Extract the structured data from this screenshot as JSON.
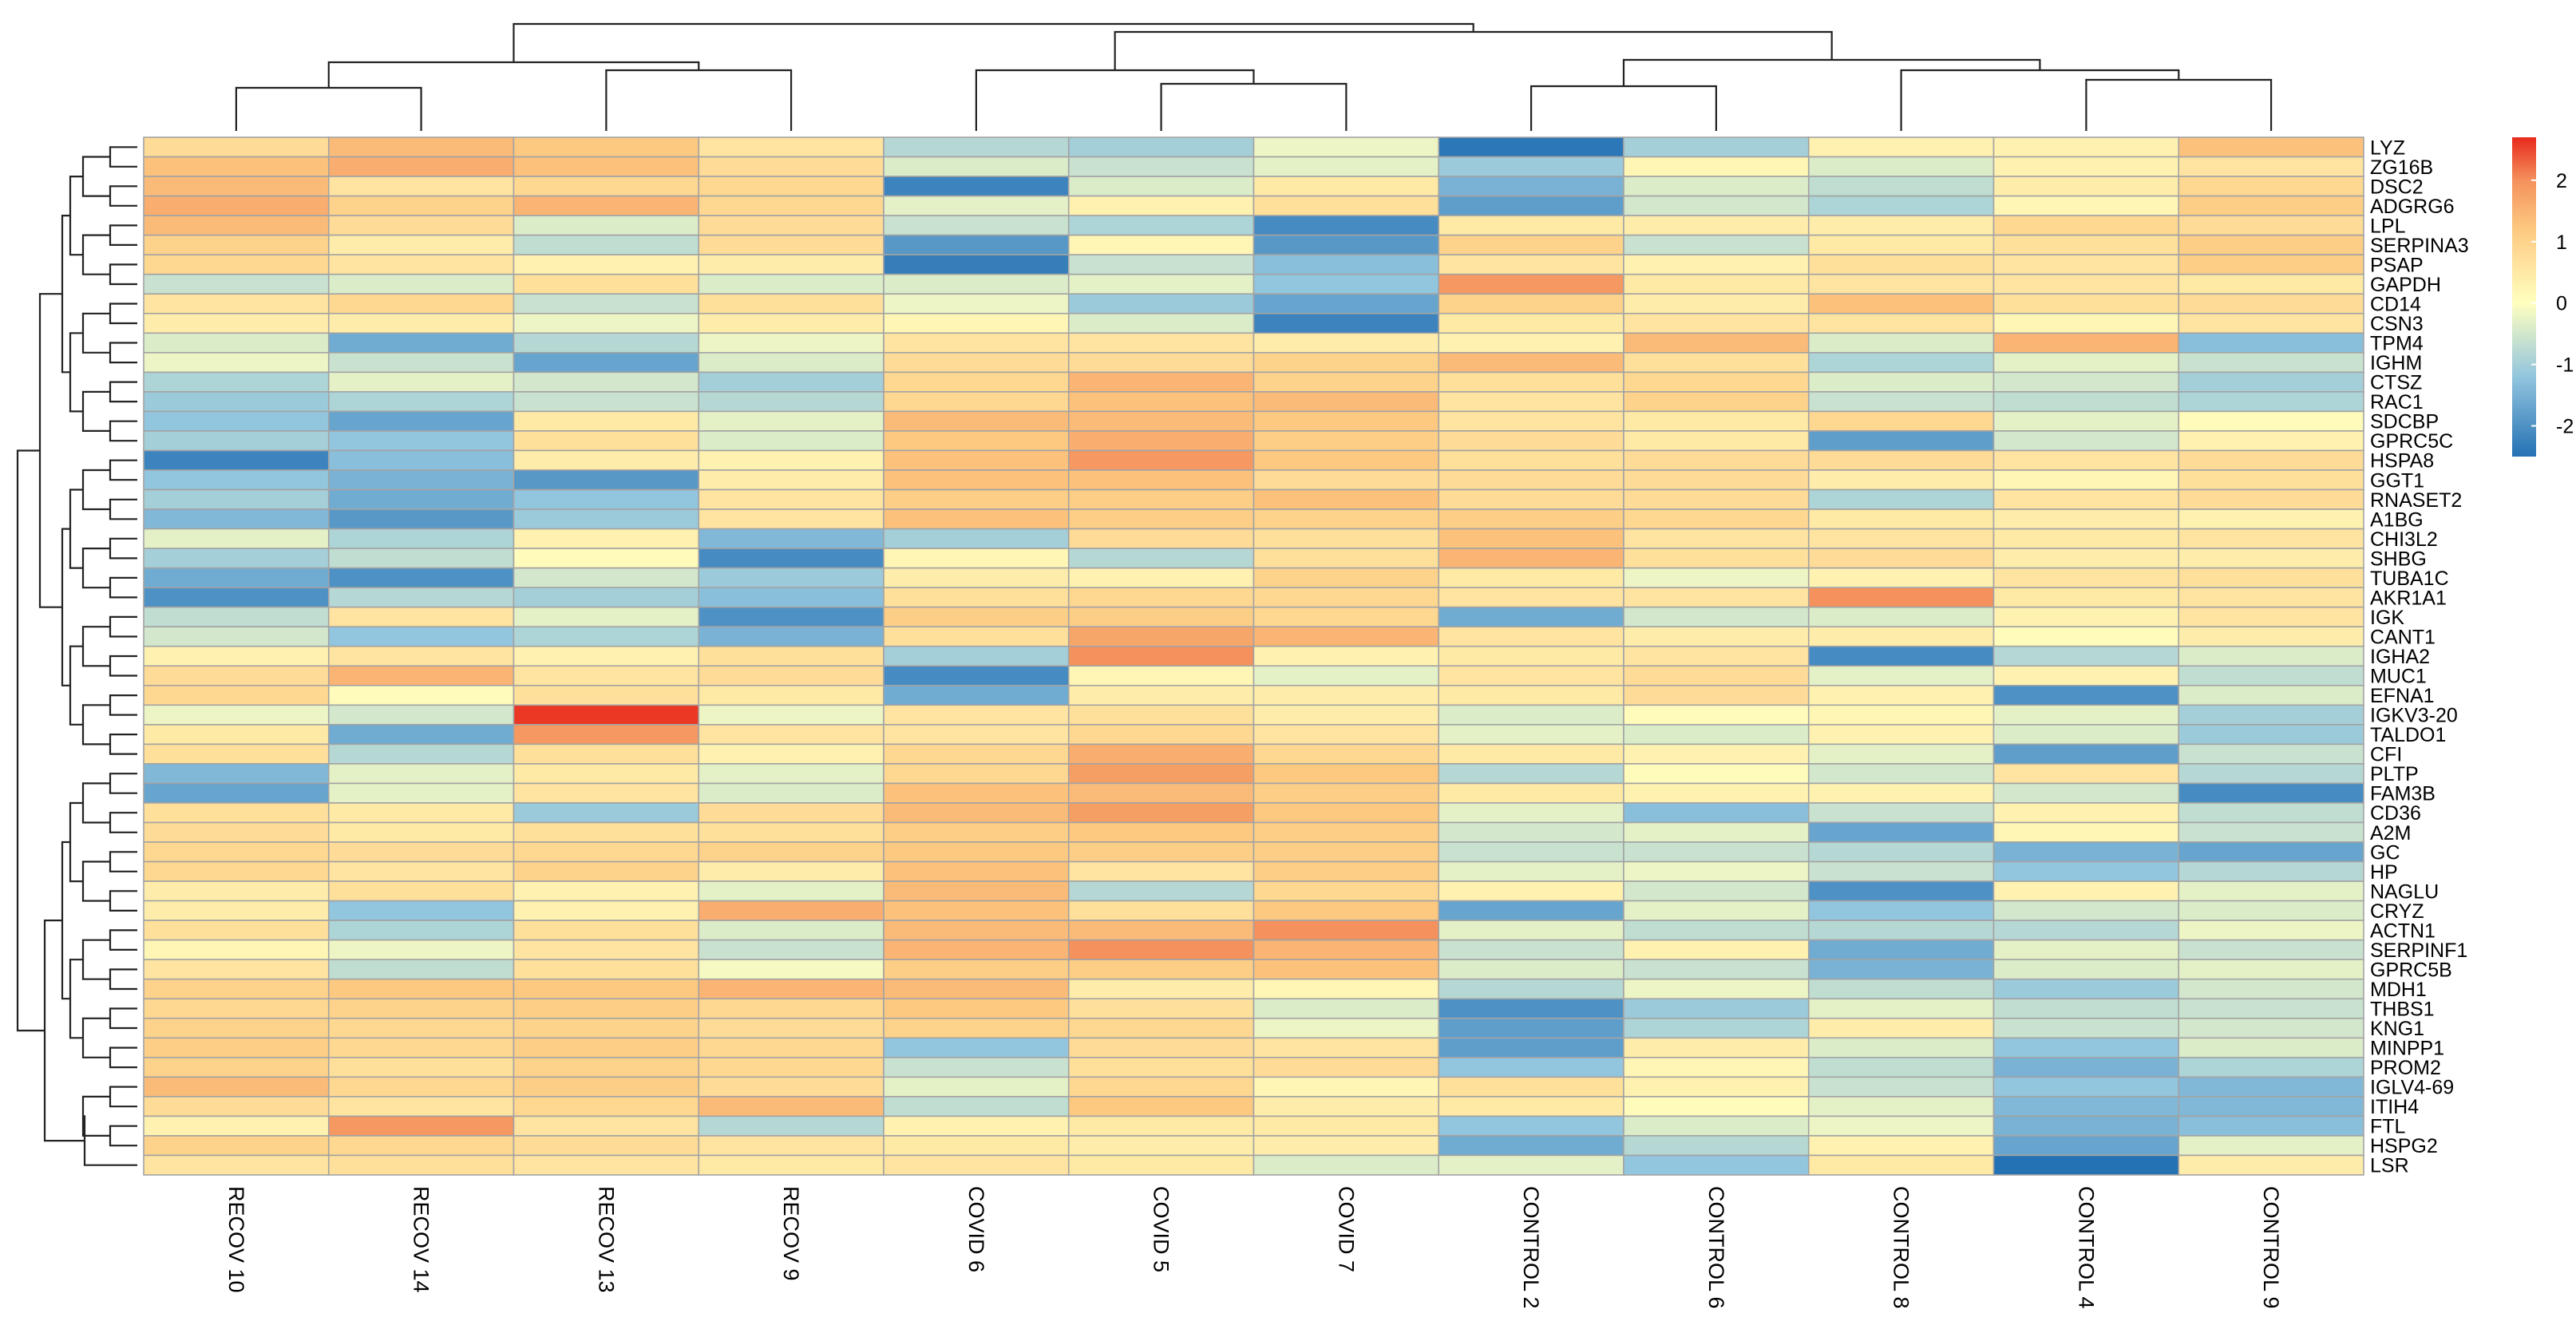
{
  "chart_data": {
    "type": "heatmap",
    "title": "",
    "color_scale": {
      "min": -2.5,
      "max": 2.7,
      "ticks": [
        -2,
        -1,
        0,
        1,
        2
      ],
      "stops": [
        {
          "value": -2.5,
          "color": "#2471B4"
        },
        {
          "value": -1.2,
          "color": "#92C5DE"
        },
        {
          "value": 0,
          "color": "#FFFFBF"
        },
        {
          "value": 1.2,
          "color": "#FDC981"
        },
        {
          "value": 2.0,
          "color": "#F4915C"
        },
        {
          "value": 2.7,
          "color": "#E8291C"
        }
      ]
    },
    "columns": [
      "RECOV 10",
      "RECOV 14",
      "RECOV 13",
      "RECOV 9",
      "COVID 6",
      "COVID 5",
      "COVID 7",
      "CONTROL 2",
      "CONTROL 6",
      "CONTROL 8",
      "CONTROL 4",
      "CONTROL 9"
    ],
    "rows": [
      "LYZ",
      "ZG16B",
      "DSC2",
      "ADGRG6",
      "LPL",
      "SERPINA3",
      "PSAP",
      "GAPDH",
      "CD14",
      "CSN3",
      "TPM4",
      "IGHM",
      "CTSZ",
      "RAC1",
      "SDCBP",
      "GPRC5C",
      "HSPA8",
      "GGT1",
      "RNASET2",
      "A1BG",
      "CHI3L2",
      "SHBG",
      "TUBA1C",
      "AKR1A1",
      "IGK",
      "CANT1",
      "IGHA2",
      "MUC1",
      "EFNA1",
      "IGKV3-20",
      "TALDO1",
      "CFI",
      "PLTP",
      "FAM3B",
      "CD36",
      "A2M",
      "GC",
      "HP",
      "NAGLU",
      "CRYZ",
      "ACTN1",
      "SERPINF1",
      "GPRC5B",
      "MDH1",
      "THBS1",
      "KNG1",
      "MINPP1",
      "PROM2",
      "IGLV4-69",
      "ITIH4",
      "FTL",
      "HSPG2",
      "LSR"
    ],
    "values": [
      [
        0.8,
        1.4,
        1.2,
        0.6,
        -0.8,
        -1.0,
        -0.2,
        -2.4,
        -1.0,
        0.3,
        0.3,
        1.3
      ],
      [
        1.3,
        1.6,
        1.3,
        0.8,
        -0.4,
        -0.6,
        -0.3,
        -1.1,
        0.2,
        -0.4,
        0.3,
        0.6
      ],
      [
        1.4,
        0.6,
        0.9,
        0.9,
        -2.2,
        -0.4,
        0.5,
        -1.5,
        -0.4,
        -0.7,
        0.4,
        0.9
      ],
      [
        1.6,
        1.0,
        1.5,
        0.9,
        -0.3,
        0.3,
        0.7,
        -1.8,
        -0.5,
        -0.9,
        0.2,
        1.1
      ],
      [
        1.4,
        0.8,
        -0.4,
        0.8,
        -0.6,
        -0.9,
        -2.1,
        0.5,
        0.4,
        0.4,
        0.9,
        0.8
      ],
      [
        1.0,
        0.4,
        -0.7,
        0.8,
        -1.9,
        0.2,
        -1.9,
        1.0,
        -0.6,
        0.5,
        0.7,
        1.1
      ],
      [
        0.9,
        0.6,
        0.3,
        0.4,
        -2.3,
        -0.6,
        -1.3,
        0.6,
        0.3,
        0.7,
        0.6,
        1.1
      ],
      [
        -0.6,
        -0.4,
        0.7,
        -0.4,
        -0.4,
        -0.3,
        -1.2,
        1.9,
        0.5,
        0.6,
        0.6,
        0.5
      ],
      [
        0.6,
        0.9,
        -0.6,
        0.7,
        -0.2,
        -1.1,
        -1.7,
        1.0,
        0.4,
        1.3,
        0.7,
        0.8
      ],
      [
        0.4,
        0.4,
        -0.2,
        0.4,
        0.2,
        -0.4,
        -2.2,
        0.5,
        0.6,
        0.6,
        0.2,
        0.6
      ],
      [
        -0.4,
        -1.6,
        -0.8,
        -0.2,
        0.6,
        0.6,
        0.4,
        0.3,
        1.4,
        -0.4,
        1.5,
        -1.3
      ],
      [
        -0.2,
        -0.6,
        -1.7,
        -0.4,
        0.8,
        0.8,
        1.0,
        1.4,
        0.7,
        -0.9,
        -0.3,
        -0.6
      ],
      [
        -0.9,
        -0.3,
        -0.5,
        -1.0,
        0.9,
        1.5,
        1.0,
        0.7,
        0.9,
        -0.4,
        -0.5,
        -1.0
      ],
      [
        -1.1,
        -0.9,
        -0.6,
        -0.8,
        0.9,
        1.3,
        1.4,
        0.6,
        1.0,
        -0.6,
        -0.7,
        -0.9
      ],
      [
        -1.2,
        -1.7,
        0.5,
        -0.3,
        1.4,
        1.4,
        1.2,
        0.6,
        0.5,
        0.9,
        -0.3,
        0.1
      ],
      [
        -1.0,
        -1.2,
        0.7,
        -0.4,
        1.2,
        1.6,
        1.1,
        0.8,
        0.5,
        -1.8,
        -0.5,
        0.3
      ],
      [
        -2.2,
        -1.3,
        0.4,
        0.3,
        1.3,
        1.9,
        1.2,
        0.7,
        0.8,
        0.8,
        0.6,
        0.8
      ],
      [
        -1.2,
        -1.5,
        -1.9,
        0.4,
        1.3,
        1.3,
        0.8,
        0.8,
        0.8,
        0.4,
        0.2,
        0.7
      ],
      [
        -1.0,
        -1.6,
        -1.2,
        0.6,
        1.1,
        1.1,
        1.3,
        0.8,
        0.8,
        -0.9,
        0.6,
        0.8
      ],
      [
        -1.4,
        -1.9,
        -1.1,
        0.6,
        1.3,
        1.1,
        1.0,
        1.1,
        0.9,
        0.5,
        0.4,
        0.3
      ],
      [
        -0.3,
        -0.9,
        0.3,
        -1.4,
        -1.0,
        0.8,
        0.7,
        1.3,
        0.6,
        0.6,
        0.5,
        0.6
      ],
      [
        -1.0,
        -0.7,
        0.1,
        -2.1,
        0.2,
        -0.8,
        0.7,
        1.5,
        0.7,
        0.8,
        0.4,
        0.4
      ],
      [
        -1.6,
        -2.0,
        -0.5,
        -1.1,
        0.4,
        0.3,
        1.0,
        0.5,
        -0.2,
        0.3,
        0.6,
        0.7
      ],
      [
        -2.0,
        -0.8,
        -1.0,
        -1.3,
        0.7,
        0.9,
        0.9,
        0.6,
        0.6,
        2.0,
        0.5,
        0.6
      ],
      [
        -0.7,
        0.6,
        -0.3,
        -2.0,
        1.1,
        1.1,
        0.9,
        -1.6,
        -0.5,
        -0.4,
        0.3,
        0.6
      ],
      [
        -0.5,
        -1.2,
        -0.9,
        -1.5,
        0.7,
        1.7,
        1.5,
        0.6,
        0.4,
        0.4,
        0.1,
        0.4
      ],
      [
        0.3,
        0.6,
        0.3,
        0.7,
        -1.0,
        2.0,
        0.3,
        0.5,
        0.6,
        -2.1,
        -0.8,
        -0.4
      ],
      [
        0.8,
        1.5,
        0.6,
        0.8,
        -2.1,
        0.2,
        -0.3,
        0.6,
        0.8,
        -0.3,
        0.3,
        -0.7
      ],
      [
        0.9,
        0.1,
        0.7,
        0.5,
        -1.6,
        0.4,
        0.4,
        0.5,
        0.8,
        0.3,
        -2.0,
        -0.4
      ],
      [
        -0.2,
        -0.5,
        2.6,
        -0.2,
        0.6,
        0.7,
        0.4,
        -0.4,
        0.1,
        0.2,
        -0.3,
        -1.0
      ],
      [
        0.5,
        -1.6,
        1.9,
        0.6,
        0.6,
        0.9,
        0.6,
        -0.3,
        -0.4,
        0.3,
        -0.4,
        -1.1
      ],
      [
        0.7,
        -0.8,
        0.7,
        0.3,
        0.9,
        1.6,
        0.9,
        0.5,
        0.3,
        -0.3,
        -1.8,
        -0.6
      ],
      [
        -1.4,
        -0.3,
        0.5,
        -0.3,
        0.9,
        1.8,
        1.2,
        -0.8,
        0.1,
        -0.5,
        0.6,
        -0.8
      ],
      [
        -1.7,
        -0.3,
        0.6,
        -0.4,
        1.3,
        1.4,
        1.1,
        0.5,
        0.3,
        0.3,
        -0.5,
        -2.1
      ],
      [
        0.7,
        0.5,
        -1.1,
        0.8,
        1.4,
        1.8,
        1.2,
        -0.3,
        -1.3,
        -0.6,
        0.3,
        -0.7
      ],
      [
        0.8,
        0.5,
        0.7,
        0.7,
        1.1,
        1.2,
        1.1,
        -0.5,
        -0.3,
        -1.7,
        0.2,
        -0.6
      ],
      [
        0.9,
        0.8,
        0.9,
        1.0,
        1.2,
        1.1,
        1.1,
        -0.6,
        -0.6,
        -0.8,
        -1.5,
        -1.7
      ],
      [
        0.9,
        0.6,
        1.0,
        0.4,
        1.3,
        0.6,
        1.1,
        -0.3,
        -0.2,
        -0.6,
        -1.2,
        -0.8
      ],
      [
        0.4,
        0.7,
        0.3,
        -0.3,
        1.4,
        -0.8,
        0.9,
        0.3,
        -0.5,
        -2.0,
        0.3,
        -0.3
      ],
      [
        0.4,
        -1.2,
        0.3,
        1.6,
        1.3,
        0.7,
        1.2,
        -1.7,
        -0.3,
        -1.2,
        -0.5,
        -0.4
      ],
      [
        0.7,
        -0.9,
        0.7,
        -0.4,
        1.4,
        1.4,
        2.0,
        -0.3,
        -0.7,
        -0.8,
        -0.8,
        -0.2
      ],
      [
        0.2,
        -0.2,
        0.6,
        -0.6,
        1.5,
        2.0,
        1.5,
        -0.6,
        0.3,
        -1.6,
        -0.3,
        -0.6
      ],
      [
        0.6,
        -0.7,
        0.7,
        -0.1,
        1.1,
        1.1,
        1.3,
        -0.4,
        -0.6,
        -1.5,
        -0.4,
        -0.3
      ],
      [
        1.0,
        1.2,
        1.2,
        1.5,
        1.4,
        0.4,
        0.2,
        -0.8,
        -0.2,
        -0.7,
        -1.1,
        -0.5
      ],
      [
        0.9,
        1.0,
        1.1,
        0.9,
        1.2,
        0.7,
        -0.4,
        -2.0,
        -1.1,
        -0.3,
        -0.7,
        -0.6
      ],
      [
        1.0,
        0.9,
        1.0,
        0.8,
        1.0,
        0.9,
        -0.2,
        -1.8,
        -0.9,
        0.4,
        -0.6,
        -0.5
      ],
      [
        1.1,
        0.9,
        1.1,
        0.9,
        -1.2,
        0.8,
        0.6,
        -1.8,
        0.4,
        -0.4,
        -1.2,
        -0.4
      ],
      [
        1.0,
        0.7,
        1.0,
        0.9,
        -0.6,
        0.7,
        0.8,
        -1.2,
        0.2,
        -0.7,
        -1.5,
        -0.9
      ],
      [
        1.4,
        0.9,
        1.1,
        0.8,
        -0.3,
        0.9,
        0.2,
        0.7,
        0.3,
        -0.6,
        -1.2,
        -1.4
      ],
      [
        0.8,
        0.6,
        0.9,
        1.4,
        -0.7,
        1.2,
        0.4,
        0.5,
        0.1,
        -0.3,
        -1.4,
        -1.4
      ],
      [
        0.3,
        1.9,
        0.6,
        -0.8,
        0.3,
        0.5,
        0.5,
        -1.2,
        -0.4,
        -0.2,
        -1.5,
        -1.3
      ],
      [
        1.0,
        0.9,
        0.8,
        0.6,
        0.5,
        0.4,
        0.4,
        -1.6,
        -0.8,
        0.3,
        -1.7,
        -0.3
      ],
      [
        0.6,
        0.7,
        0.6,
        0.5,
        0.6,
        0.5,
        -0.4,
        -0.3,
        -1.2,
        0.5,
        -2.6,
        0.4
      ]
    ]
  }
}
